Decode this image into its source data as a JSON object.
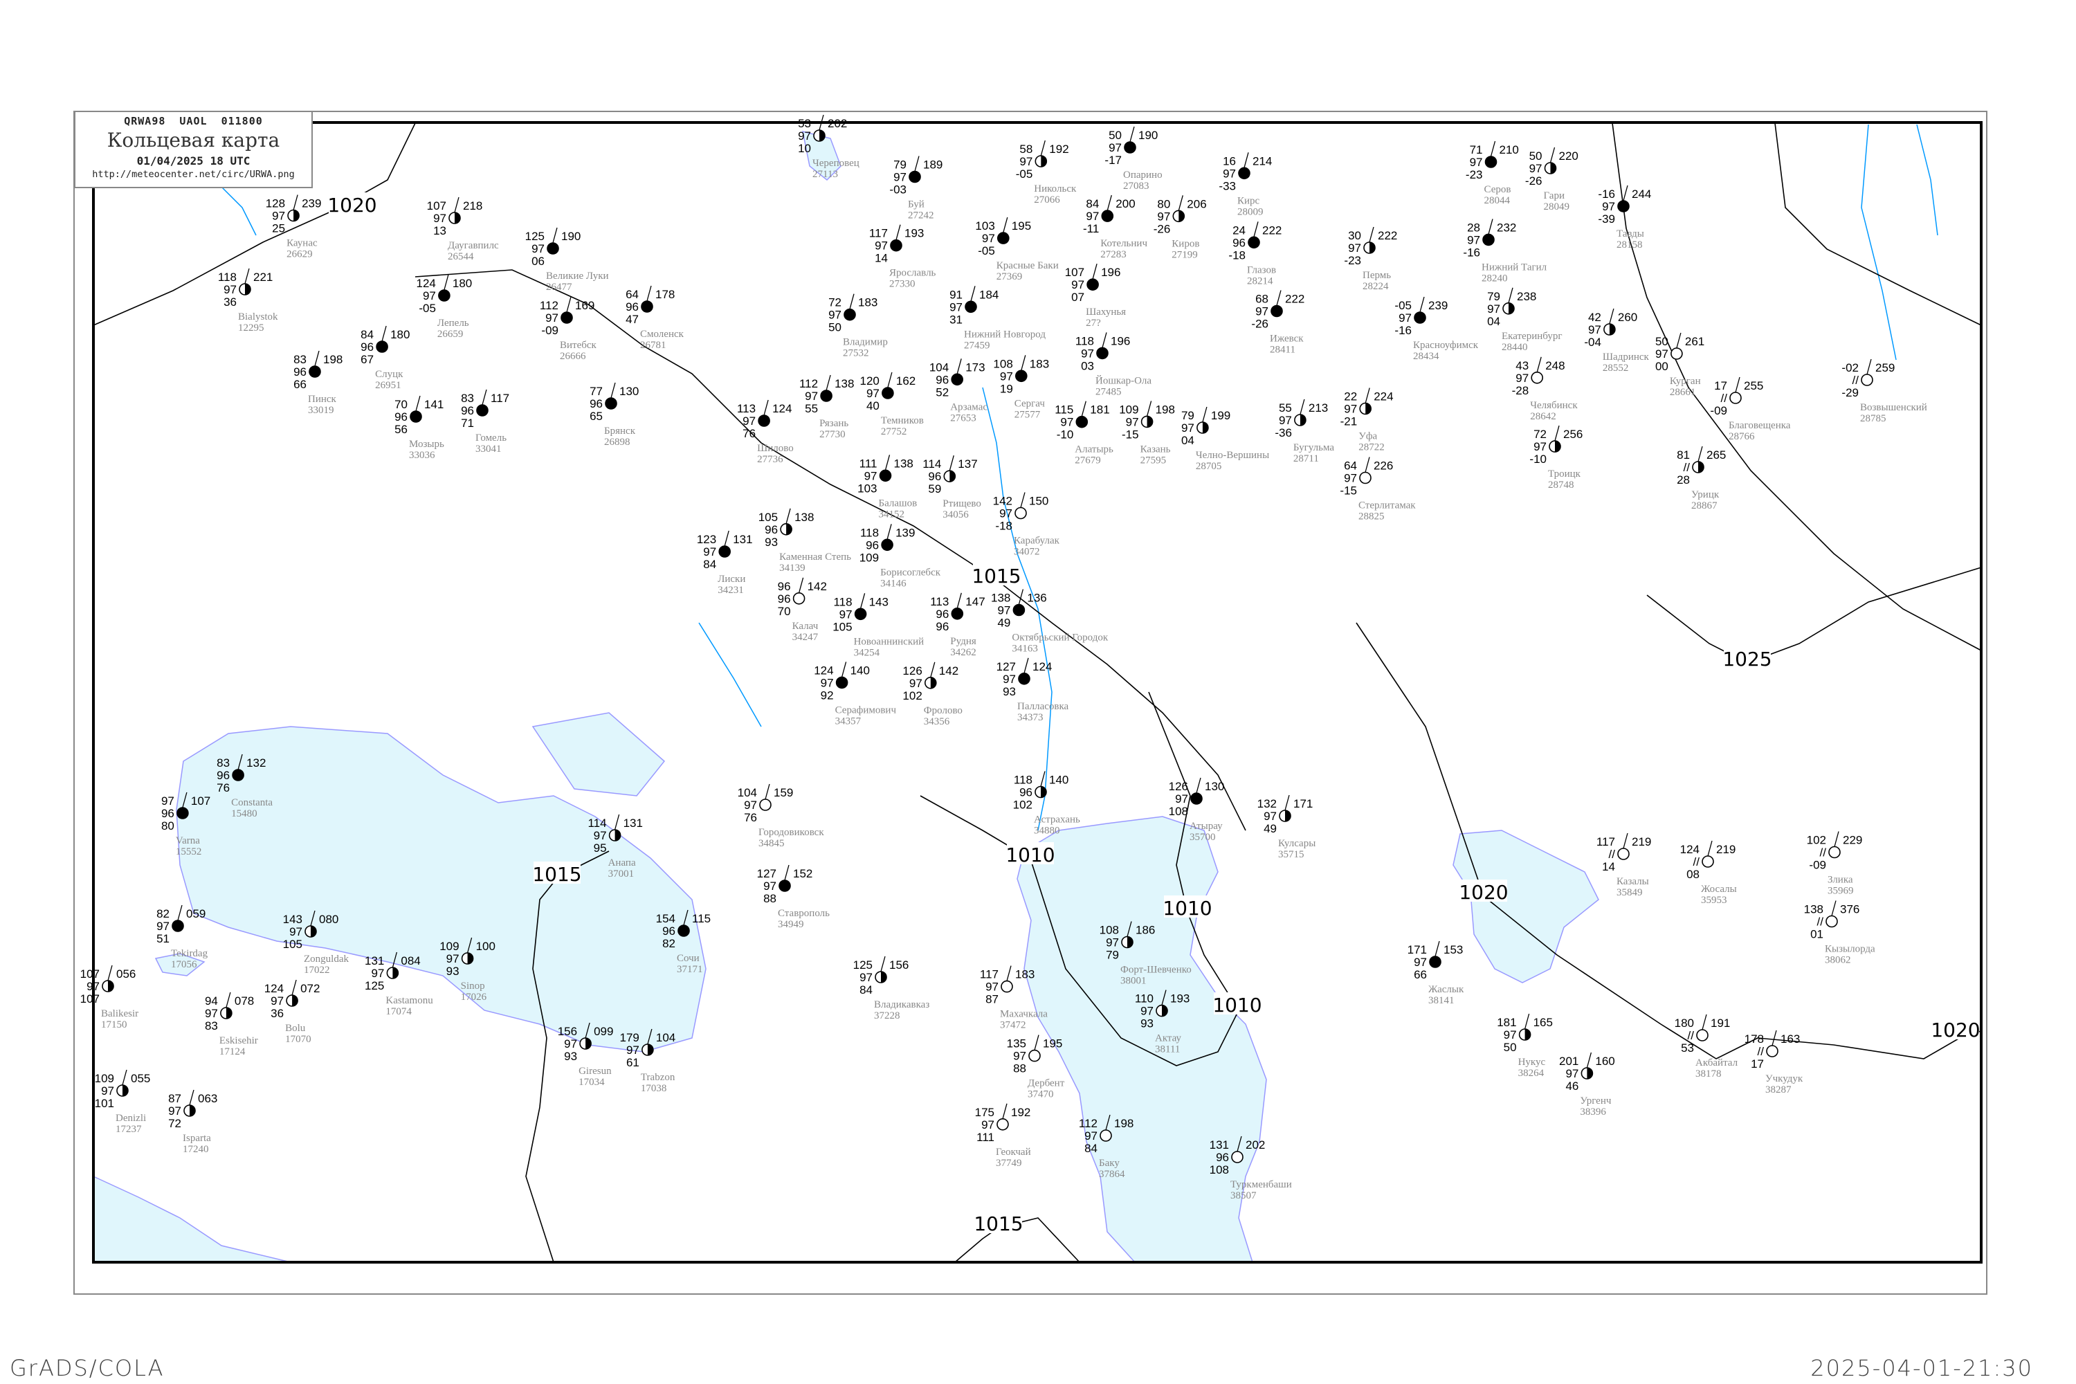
{
  "header": {
    "code": "QRWA98  UAOL  011800",
    "title": "Кольцевая карта",
    "datetime": "01/04/2025 18 UTC",
    "url": "http://meteocenter.net/circ/URWA.png"
  },
  "footer": {
    "left": "GrADS/COLA",
    "right": "2025-04-01-21:30"
  },
  "colors": {
    "water": "#e0f6fc",
    "coast": "#9999ff",
    "river": "#0099ff",
    "isobar": "#000000",
    "station_name": "#888888",
    "front": "#e0007a"
  },
  "isobar_labels": [
    "1020",
    "1015",
    "1015",
    "1010",
    "1010",
    "1010",
    "1015",
    "1020",
    "1025",
    "1020"
  ],
  "stations": [
    {
      "name": "Каунас",
      "id": "26629",
      "t": "128",
      "vis": "97",
      "td": "25",
      "p": "239",
      "cover": "half"
    },
    {
      "name": "Bialystok",
      "id": "12295",
      "t": "118",
      "vis": "97",
      "td": "36",
      "p": "221",
      "cover": "half"
    },
    {
      "name": "Даугавпилс",
      "id": "26544",
      "t": "107",
      "vis": "97",
      "td": "13",
      "p": "218",
      "cover": "half"
    },
    {
      "name": "Великие Луки",
      "id": "26477",
      "t": "125",
      "vis": "97",
      "td": "06",
      "p": "190",
      "cover": "full"
    },
    {
      "name": "Витебск",
      "id": "26666",
      "t": "112",
      "vis": "97",
      "td": "-09",
      "p": "169",
      "cover": "full"
    },
    {
      "name": "Смоленск",
      "id": "26781",
      "t": "64",
      "vis": "96",
      "td": "47",
      "p": "178",
      "cover": "full"
    },
    {
      "name": "Слуцк",
      "id": "26951",
      "t": "84",
      "vis": "96",
      "td": "67",
      "p": "180",
      "cover": "full"
    },
    {
      "name": "Пинск",
      "id": "33019",
      "t": "83",
      "vis": "96",
      "td": "66",
      "p": "198",
      "cover": "full"
    },
    {
      "name": "Мозырь",
      "id": "33036",
      "t": "70",
      "vis": "96",
      "td": "56",
      "p": "141",
      "cover": "full"
    },
    {
      "name": "Гомель",
      "id": "33041",
      "t": "83",
      "vis": "96",
      "td": "71",
      "p": "117",
      "cover": "full"
    },
    {
      "name": "Брянск",
      "id": "26898",
      "t": "77",
      "vis": "96",
      "td": "65",
      "p": "130",
      "cover": "full"
    },
    {
      "name": "Лепель",
      "id": "26659",
      "t": "124",
      "vis": "97",
      "td": "-05",
      "p": "180",
      "cover": "full"
    },
    {
      "name": "Череповец",
      "id": "27113",
      "t": "53",
      "vis": "97",
      "td": "10",
      "p": "202",
      "cover": "half"
    },
    {
      "name": "Никольск",
      "id": "27066",
      "t": "58",
      "vis": "97",
      "td": "-05",
      "p": "192",
      "cover": "half"
    },
    {
      "name": "Опарино",
      "id": "27083",
      "t": "50",
      "vis": "97",
      "td": "-17",
      "p": "190",
      "cover": "full"
    },
    {
      "name": "Киров",
      "id": "27199",
      "t": "80",
      "vis": "97",
      "td": "-26",
      "p": "206",
      "cover": "half"
    },
    {
      "name": "Котельнич",
      "id": "27283",
      "t": "84",
      "vis": "97",
      "td": "-11",
      "p": "200",
      "cover": "full"
    },
    {
      "name": "Буй",
      "id": "27242",
      "t": "79",
      "vis": "97",
      "td": "-03",
      "p": "189",
      "cover": "full"
    },
    {
      "name": "Ярославль",
      "id": "27330",
      "t": "117",
      "vis": "97",
      "td": "14",
      "p": "193",
      "cover": "full"
    },
    {
      "name": "Нижний Новгород",
      "id": "27459",
      "t": "91",
      "vis": "97",
      "td": "31",
      "p": "184",
      "cover": "full"
    },
    {
      "name": "Красные Баки",
      "id": "27369",
      "t": "103",
      "vis": "97",
      "td": "-05",
      "p": "195",
      "cover": "full"
    },
    {
      "name": "Йошкар-Ола",
      "id": "27485",
      "t": "118",
      "vis": "97",
      "td": "03",
      "p": "196",
      "cover": "full"
    },
    {
      "name": "Шахунья",
      "id": "27?",
      "t": "107",
      "vis": "97",
      "td": "07",
      "p": "196",
      "cover": "full"
    },
    {
      "name": "Казань",
      "id": "27595",
      "t": "109",
      "vis": "97",
      "td": "-15",
      "p": "198",
      "cover": "half"
    },
    {
      "name": "Ижевск",
      "id": "28411",
      "t": "68",
      "vis": "97",
      "td": "-26",
      "p": "222",
      "cover": "full"
    },
    {
      "name": "Глазов",
      "id": "28214",
      "t": "24",
      "vis": "96",
      "td": "-18",
      "p": "222",
      "cover": "full"
    },
    {
      "name": "Кирс",
      "id": "28009",
      "t": "16",
      "vis": "97",
      "td": "-33",
      "p": "214",
      "cover": "full"
    },
    {
      "name": "Владимир",
      "id": "27532",
      "t": "72",
      "vis": "97",
      "td": "50",
      "p": "183",
      "cover": "full"
    },
    {
      "name": "Рязань",
      "id": "27730",
      "t": "112",
      "vis": "97",
      "td": "55",
      "p": "138",
      "cover": "full"
    },
    {
      "name": "Арзамас",
      "id": "27653",
      "t": "104",
      "vis": "96",
      "td": "52",
      "p": "173",
      "cover": "full"
    },
    {
      "name": "Сергач",
      "id": "27577",
      "t": "108",
      "vis": "97",
      "td": "19",
      "p": "183",
      "cover": "full"
    },
    {
      "name": "Алатырь",
      "id": "27679",
      "t": "115",
      "vis": "97",
      "td": "-10",
      "p": "181",
      "cover": "full"
    },
    {
      "name": "Темников",
      "id": "27752",
      "t": "120",
      "vis": "97",
      "td": "40",
      "p": "162",
      "cover": "full"
    },
    {
      "name": "Шилово",
      "id": "27736",
      "t": "113",
      "vis": "97",
      "td": "76",
      "p": "124",
      "cover": "full"
    },
    {
      "name": "Челно-Вершины",
      "id": "28705",
      "t": "79",
      "vis": "97",
      "td": "04",
      "p": "199",
      "cover": "half"
    },
    {
      "name": "Бугульма",
      "id": "28711",
      "t": "55",
      "vis": "97",
      "td": "-36",
      "p": "213",
      "cover": "half"
    },
    {
      "name": "Серов",
      "id": "28044",
      "t": "71",
      "vis": "97",
      "td": "-23",
      "p": "210",
      "cover": "full"
    },
    {
      "name": "Гари",
      "id": "28049",
      "t": "50",
      "vis": "97",
      "td": "-26",
      "p": "220",
      "cover": "half"
    },
    {
      "name": "Тавды",
      "id": "28158",
      "t": "-16",
      "vis": "97",
      "td": "-39",
      "p": "244",
      "cover": "full"
    },
    {
      "name": "Пермь",
      "id": "28224",
      "t": "30",
      "vis": "97",
      "td": "-23",
      "p": "222",
      "cover": "half"
    },
    {
      "name": "Нижний Тагил",
      "id": "28240",
      "t": "28",
      "vis": "97",
      "td": "-16",
      "p": "232",
      "cover": "full"
    },
    {
      "name": "Екатеринбург",
      "id": "28440",
      "t": "79",
      "vis": "97",
      "td": "04",
      "p": "238",
      "cover": "half"
    },
    {
      "name": "Красноуфимск",
      "id": "28434",
      "t": "-05",
      "vis": "97",
      "td": "-16",
      "p": "239",
      "cover": "full"
    },
    {
      "name": "Шадринск",
      "id": "28552",
      "t": "42",
      "vis": "97",
      "td": "-04",
      "p": "260",
      "cover": "half"
    },
    {
      "name": "Курган",
      "id": "28661",
      "t": "50",
      "vis": "97",
      "td": "00",
      "p": "261",
      "cover": "clear"
    },
    {
      "name": "Челябинск",
      "id": "28642",
      "t": "43",
      "vis": "97",
      "td": "-28",
      "p": "248",
      "cover": "clear"
    },
    {
      "name": "Уфа",
      "id": "28722",
      "t": "22",
      "vis": "97",
      "td": "-21",
      "p": "224",
      "cover": "half"
    },
    {
      "name": "Троицк",
      "id": "28748",
      "t": "72",
      "vis": "97",
      "td": "-10",
      "p": "256",
      "cover": "half"
    },
    {
      "name": "Стерлитамак",
      "id": "28825",
      "t": "64",
      "vis": "97",
      "td": "-15",
      "p": "226",
      "cover": "clear"
    },
    {
      "name": "Возвышенский",
      "id": "28785",
      "t": "-02",
      "vis": "//",
      "td": "-29",
      "p": "259",
      "cover": "clear"
    },
    {
      "name": "Благовещенка",
      "id": "28766",
      "t": "17",
      "vis": "//",
      "td": "-09",
      "p": "255",
      "cover": "clear"
    },
    {
      "name": "Урицк",
      "id": "28867",
      "t": "81",
      "vis": "//",
      "td": "28",
      "p": "265",
      "cover": "half"
    },
    {
      "name": "Казалы",
      "id": "35849",
      "t": "117",
      "vis": "//",
      "td": "14",
      "p": "219",
      "cover": "clear"
    },
    {
      "name": "Жосалы",
      "id": "35953",
      "t": "124",
      "vis": "//",
      "td": "08",
      "p": "219",
      "cover": "clear"
    },
    {
      "name": "Злика",
      "id": "35969",
      "t": "102",
      "vis": "//",
      "td": "-09",
      "p": "229",
      "cover": "clear"
    },
    {
      "name": "Кызылорда",
      "id": "38062",
      "t": "138",
      "vis": "//",
      "td": "01",
      "p": "376",
      "cover": "clear"
    },
    {
      "name": "Жаслык",
      "id": "38141",
      "t": "171",
      "vis": "97",
      "td": "66",
      "p": "153",
      "cover": "full"
    },
    {
      "name": "Нукус",
      "id": "38264",
      "t": "181",
      "vis": "97",
      "td": "50",
      "p": "165",
      "cover": "half"
    },
    {
      "name": "Ургенч",
      "id": "38396",
      "t": "201",
      "vis": "97",
      "td": "46",
      "p": "160",
      "cover": "half"
    },
    {
      "name": "Акбайтал",
      "id": "38178",
      "t": "180",
      "vis": "//",
      "td": "53",
      "p": "191",
      "cover": "clear"
    },
    {
      "name": "Учкудук",
      "id": "38287",
      "t": "178",
      "vis": "//",
      "td": "17",
      "p": "163",
      "cover": "clear"
    },
    {
      "name": "Лиски",
      "id": "34231",
      "t": "123",
      "vis": "97",
      "td": "84",
      "p": "131",
      "cover": "full"
    },
    {
      "name": "Каменная Степь",
      "id": "34139",
      "t": "105",
      "vis": "96",
      "td": "93",
      "p": "138",
      "cover": "half"
    },
    {
      "name": "Борисоглебск",
      "id": "34146",
      "t": "118",
      "vis": "96",
      "td": "109",
      "p": "139",
      "cover": "full"
    },
    {
      "name": "Балашов",
      "id": "34152",
      "t": "111",
      "vis": "97",
      "td": "103",
      "p": "138",
      "cover": "full"
    },
    {
      "name": "Ртищево",
      "id": "34056",
      "t": "114",
      "vis": "96",
      "td": "59",
      "p": "137",
      "cover": "half"
    },
    {
      "name": "Калач",
      "id": "34247",
      "t": "96",
      "vis": "96",
      "td": "70",
      "p": "142",
      "cover": "clear"
    },
    {
      "name": "Новоаннинский",
      "id": "34254",
      "t": "118",
      "vis": "97",
      "td": "105",
      "p": "143",
      "cover": "full"
    },
    {
      "name": "Рудня",
      "id": "34262",
      "t": "113",
      "vis": "96",
      "td": "96",
      "p": "147",
      "cover": "full"
    },
    {
      "name": "Октябрьский Городок",
      "id": "34163",
      "t": "138",
      "vis": "97",
      "td": "49",
      "p": "136",
      "cover": "full"
    },
    {
      "name": "Палласовка",
      "id": "34373",
      "t": "127",
      "vis": "97",
      "td": "93",
      "p": "124",
      "cover": "full"
    },
    {
      "name": "Фролово",
      "id": "34356",
      "t": "126",
      "vis": "97",
      "td": "102",
      "p": "142",
      "cover": "half"
    },
    {
      "name": "Серафимович",
      "id": "34357",
      "t": "124",
      "vis": "97",
      "td": "92",
      "p": "140",
      "cover": "full"
    },
    {
      "name": "Карабулак",
      "id": "34072",
      "t": "142",
      "vis": "97",
      "td": "-18",
      "p": "150",
      "cover": "clear"
    },
    {
      "name": "Constanta",
      "id": "15480",
      "t": "83",
      "vis": "96",
      "td": "76",
      "p": "132",
      "cover": "full"
    },
    {
      "name": "Varna",
      "id": "15552",
      "t": "97",
      "vis": "96",
      "td": "80",
      "p": "107",
      "cover": "full"
    },
    {
      "name": "Анапа",
      "id": "37001",
      "t": "114",
      "vis": "97",
      "td": "95",
      "p": "131",
      "cover": "half"
    },
    {
      "name": "Сочи",
      "id": "37171",
      "t": "154",
      "vis": "96",
      "td": "82",
      "p": "115",
      "cover": "full"
    },
    {
      "name": "Tekirdag",
      "id": "17056",
      "t": "82",
      "vis": "97",
      "td": "51",
      "p": "059",
      "cover": "full"
    },
    {
      "name": "Zonguldak",
      "id": "17022",
      "t": "143",
      "vis": "97",
      "td": "105",
      "p": "080",
      "cover": "half"
    },
    {
      "name": "Kastamonu",
      "id": "17074",
      "t": "131",
      "vis": "97",
      "td": "125",
      "p": "084",
      "cover": "half"
    },
    {
      "name": "Sinop",
      "id": "17026",
      "t": "109",
      "vis": "97",
      "td": "93",
      "p": "100",
      "cover": "half"
    },
    {
      "name": "Bolu",
      "id": "17070",
      "t": "124",
      "vis": "97",
      "td": "36",
      "p": "072",
      "cover": "half"
    },
    {
      "name": "Eskisehir",
      "id": "17124",
      "t": "94",
      "vis": "97",
      "td": "83",
      "p": "078",
      "cover": "half"
    },
    {
      "name": "Trabzon",
      "id": "17038",
      "t": "179",
      "vis": "97",
      "td": "61",
      "p": "104",
      "cover": "half"
    },
    {
      "name": "Giresun",
      "id": "17034",
      "t": "156",
      "vis": "97",
      "td": "93",
      "p": "099",
      "cover": "half"
    },
    {
      "name": "Isparta",
      "id": "17240",
      "t": "87",
      "vis": "97",
      "td": "72",
      "p": "063",
      "cover": "half"
    },
    {
      "name": "Balikesir",
      "id": "17150",
      "t": "107",
      "vis": "97",
      "td": "107",
      "p": "056",
      "cover": "half"
    },
    {
      "name": "Denizli",
      "id": "17237",
      "t": "109",
      "vis": "97",
      "td": "101",
      "p": "055",
      "cover": "half"
    },
    {
      "name": "Астрахань",
      "id": "34880",
      "t": "118",
      "vis": "96",
      "td": "102",
      "p": "140",
      "cover": "half"
    },
    {
      "name": "Атырау",
      "id": "35700",
      "t": "126",
      "vis": "97",
      "td": "108",
      "p": "130",
      "cover": "full"
    },
    {
      "name": "Кулсары",
      "id": "35715",
      "t": "132",
      "vis": "97",
      "td": "49",
      "p": "171",
      "cover": "half"
    },
    {
      "name": "Форт-Шевченко",
      "id": "38001",
      "t": "108",
      "vis": "97",
      "td": "79",
      "p": "186",
      "cover": "half"
    },
    {
      "name": "Актау",
      "id": "38111",
      "t": "110",
      "vis": "97",
      "td": "93",
      "p": "193",
      "cover": "half"
    },
    {
      "name": "Махачкала",
      "id": "37472",
      "t": "117",
      "vis": "97",
      "td": "87",
      "p": "183",
      "cover": "clear"
    },
    {
      "name": "Дербент",
      "id": "37470",
      "t": "135",
      "vis": "97",
      "td": "88",
      "p": "195",
      "cover": "clear"
    },
    {
      "name": "Баку",
      "id": "37864",
      "t": "112",
      "vis": "97",
      "td": "84",
      "p": "198",
      "cover": "clear"
    },
    {
      "name": "Туркменбаши",
      "id": "38507",
      "t": "131",
      "vis": "96",
      "td": "108",
      "p": "202",
      "cover": "clear"
    },
    {
      "name": "Ставрополь",
      "id": "34949",
      "t": "127",
      "vis": "97",
      "td": "88",
      "p": "152",
      "cover": "full"
    },
    {
      "name": "Владикавказ",
      "id": "37228",
      "t": "125",
      "vis": "97",
      "td": "84",
      "p": "156",
      "cover": "half"
    },
    {
      "name": "Городовиковск",
      "id": "34845",
      "t": "104",
      "vis": "97",
      "td": "76",
      "p": "159",
      "cover": "clear"
    },
    {
      "name": "Геокчай",
      "id": "37749",
      "t": "175",
      "vis": "97",
      "td": "111",
      "p": "192",
      "cover": "clear"
    }
  ]
}
